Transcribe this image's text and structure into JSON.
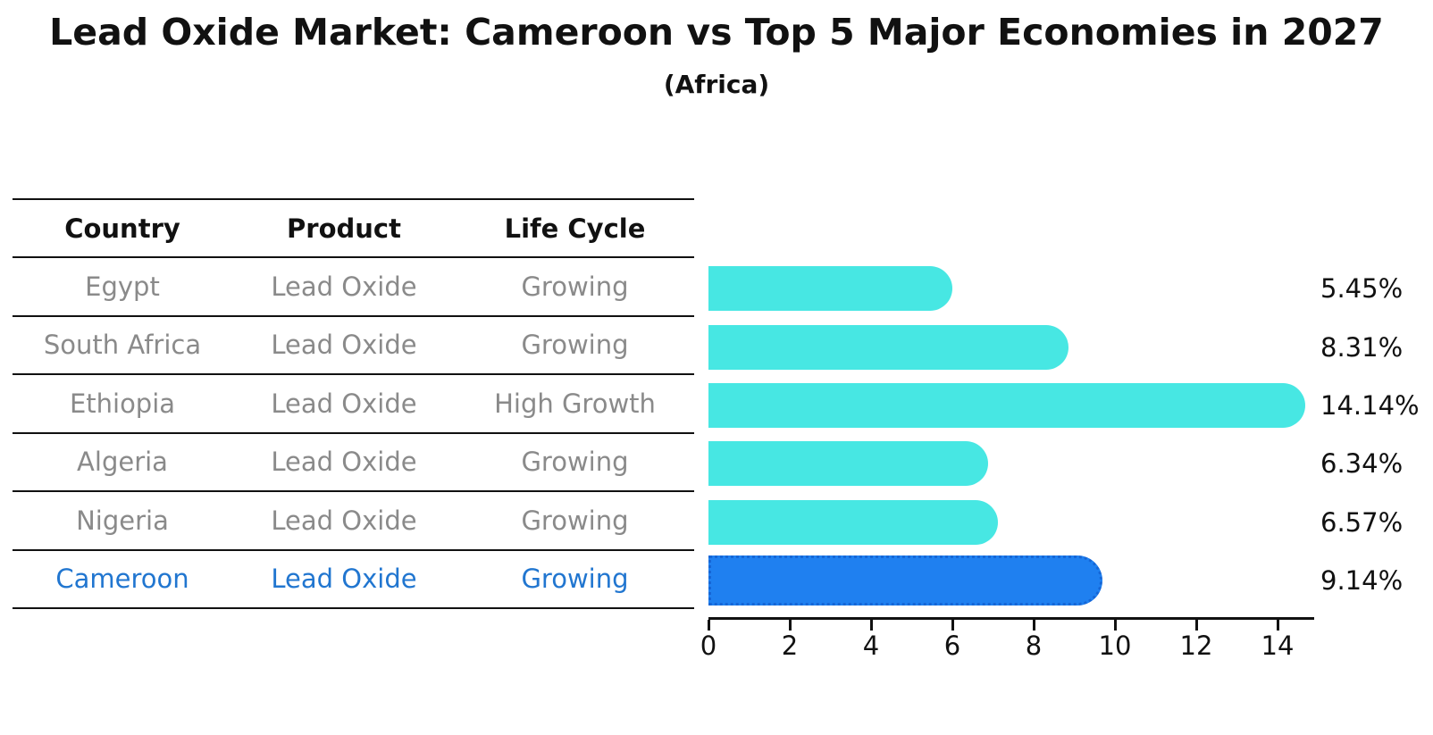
{
  "title": "Lead Oxide Market: Cameroon vs Top 5 Major Economies in 2027",
  "subtitle": "(Africa)",
  "table": {
    "headers": [
      "Country",
      "Product",
      "Life Cycle"
    ],
    "rows": [
      {
        "country": "Egypt",
        "product": "Lead Oxide",
        "life_cycle": "Growing",
        "highlighted": false
      },
      {
        "country": "South Africa",
        "product": "Lead Oxide",
        "life_cycle": "Growing",
        "highlighted": false
      },
      {
        "country": "Ethiopia",
        "product": "Lead Oxide",
        "life_cycle": "High Growth",
        "highlighted": false
      },
      {
        "country": "Algeria",
        "product": "Lead Oxide",
        "life_cycle": "Growing",
        "highlighted": false
      },
      {
        "country": "Nigeria",
        "product": "Lead Oxide",
        "life_cycle": "Growing",
        "highlighted": false
      },
      {
        "country": "Cameroon",
        "product": "Lead Oxide",
        "life_cycle": "Growing",
        "highlighted": true
      }
    ]
  },
  "chart_data": {
    "type": "bar",
    "orientation": "horizontal",
    "title": "Lead Oxide Market: Cameroon vs Top 5 Major Economies in 2027",
    "subtitle": "(Africa)",
    "categories": [
      "Egypt",
      "South Africa",
      "Ethiopia",
      "Algeria",
      "Nigeria",
      "Cameroon"
    ],
    "values": [
      5.45,
      8.31,
      14.14,
      6.34,
      6.57,
      9.14
    ],
    "value_labels": [
      "5.45%",
      "8.31%",
      "14.14%",
      "6.34%",
      "6.57%",
      "9.14%"
    ],
    "x_ticks": [
      "0",
      "2",
      "4",
      "6",
      "8",
      "10",
      "12",
      "14"
    ],
    "xlim": [
      0,
      14.88
    ],
    "xlabel": "",
    "ylabel": "",
    "grid": false,
    "legend": false,
    "bar_color": "#47e7e3",
    "highlight_index": 5,
    "highlight_bar_color": "#1f80f0",
    "highlight_border_color": "#1566d6"
  },
  "colors": {
    "text": "#111111",
    "muted_text": "#8a8a8a",
    "highlight_text": "#2176d0",
    "axis_line": "#111111"
  }
}
